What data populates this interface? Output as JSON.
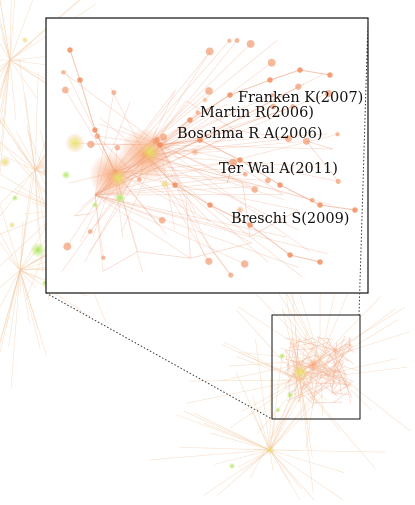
{
  "figure": {
    "colors": {
      "edge": "#f2c9a0",
      "edge_inset": "#ef9d7a",
      "node_orange": "#f08a5a",
      "node_green": "#a6e14a",
      "node_yellow": "#d8e35a",
      "frame": "#111111"
    },
    "labels": [
      {
        "id": "franken",
        "text": "Franken K(2007)"
      },
      {
        "id": "martin",
        "text": "Martin R(2006)"
      },
      {
        "id": "boschma",
        "text": "Boschma R A(2006)"
      },
      {
        "id": "terwal",
        "text": "Ter Wal A(2011)"
      },
      {
        "id": "breschi",
        "text": "Breschi S(2009)"
      }
    ]
  }
}
